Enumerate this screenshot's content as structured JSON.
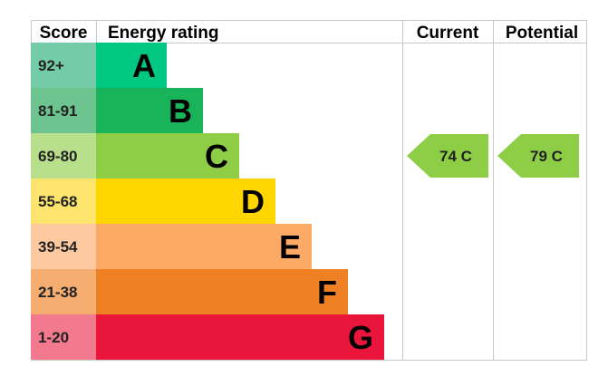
{
  "chart_data": {
    "type": "bar",
    "headers": {
      "score": "Score",
      "rating": "Energy rating",
      "current": "Current",
      "potential": "Potential"
    },
    "bands": [
      {
        "score": "92+",
        "letter": "A",
        "color": "#00c781",
        "score_color": "#73cba7"
      },
      {
        "score": "81-91",
        "letter": "B",
        "color": "#19b459",
        "score_color": "#6dc48f"
      },
      {
        "score": "69-80",
        "letter": "C",
        "color": "#8dce46",
        "score_color": "#b7df8c"
      },
      {
        "score": "55-68",
        "letter": "D",
        "color": "#ffd500",
        "score_color": "#fde46c"
      },
      {
        "score": "39-54",
        "letter": "E",
        "color": "#fcaa65",
        "score_color": "#fdc9a0"
      },
      {
        "score": "21-38",
        "letter": "F",
        "color": "#ef8023",
        "score_color": "#f5ad70"
      },
      {
        "score": "1-20",
        "letter": "G",
        "color": "#e9153b",
        "score_color": "#f2798e"
      }
    ],
    "current": {
      "value": 74,
      "letter": "C",
      "label": "74  C",
      "color": "#8dce46"
    },
    "potential": {
      "value": 79,
      "letter": "C",
      "label": "79  C",
      "color": "#8dce46"
    }
  }
}
